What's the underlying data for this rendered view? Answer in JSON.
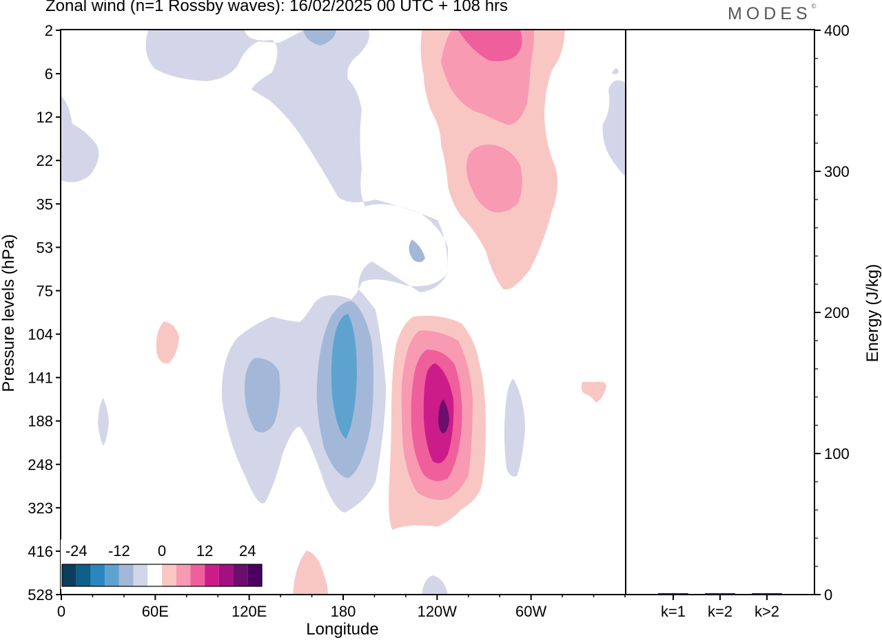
{
  "title": "Zonal wind (n=1 Rossby waves):  16/02/2025  00 UTC  + 108 hrs",
  "logo": "MODES",
  "logo_mark": "©",
  "chart_data": [
    {
      "type": "heatmap",
      "panel": "left",
      "title": "Zonal wind (n=1 Rossby waves):  16/02/2025  00 UTC  + 108 hrs",
      "xlabel": "Longitude",
      "ylabel": "Pressure levels (hPa)",
      "x_ticks": [
        "0",
        "60E",
        "120E",
        "180",
        "120W",
        "60W"
      ],
      "x_tick_degrees": [
        0,
        60,
        120,
        180,
        240,
        300
      ],
      "xlim": [
        0,
        360
      ],
      "y_ticks": [
        "2",
        "6",
        "12",
        "22",
        "35",
        "53",
        "75",
        "104",
        "141",
        "188",
        "248",
        "323",
        "416",
        "528"
      ],
      "y_axis": "pressure levels, top to bottom",
      "colorbar": {
        "tick_labels": [
          "-24",
          "-12",
          "0",
          "12",
          "24"
        ],
        "tick_values": [
          -24,
          -12,
          0,
          12,
          24
        ],
        "levels": [
          -28,
          -24,
          -20,
          -16,
          -12,
          -8,
          -4,
          4,
          8,
          12,
          16,
          20,
          24,
          28
        ],
        "colors": [
          "#0b3d5c",
          "#0d5f8c",
          "#2b86bf",
          "#5ea3cf",
          "#a3b8d8",
          "#d3d6e8",
          "#ffffff",
          "#f9c7c3",
          "#f79ab2",
          "#ef5f9c",
          "#cc1c8a",
          "#a3107f",
          "#6b0e6e",
          "#4a0060"
        ]
      },
      "contours": [
        {
          "name": "negative-anomaly",
          "level": -4
        },
        {
          "name": "negative-anomaly",
          "level": -8
        },
        {
          "name": "negative-anomaly",
          "level": -12
        },
        {
          "name": "positive-anomaly",
          "level": 4
        },
        {
          "name": "positive-anomaly",
          "level": 8
        },
        {
          "name": "positive-anomaly",
          "level": 12
        },
        {
          "name": "positive-anomaly",
          "level": 16
        },
        {
          "name": "positive-anomaly",
          "level": 20
        }
      ]
    },
    {
      "type": "bar",
      "panel": "right",
      "categories": [
        "k=1",
        "k=2",
        "k>2"
      ],
      "values": [
        1,
        0.5,
        1
      ],
      "ylabel": "Energy (J/kg)",
      "ylim": [
        0,
        400
      ],
      "y_ticks": [
        "0",
        "100",
        "200",
        "300",
        "400"
      ],
      "bar_color": "#1a1a4a"
    }
  ]
}
